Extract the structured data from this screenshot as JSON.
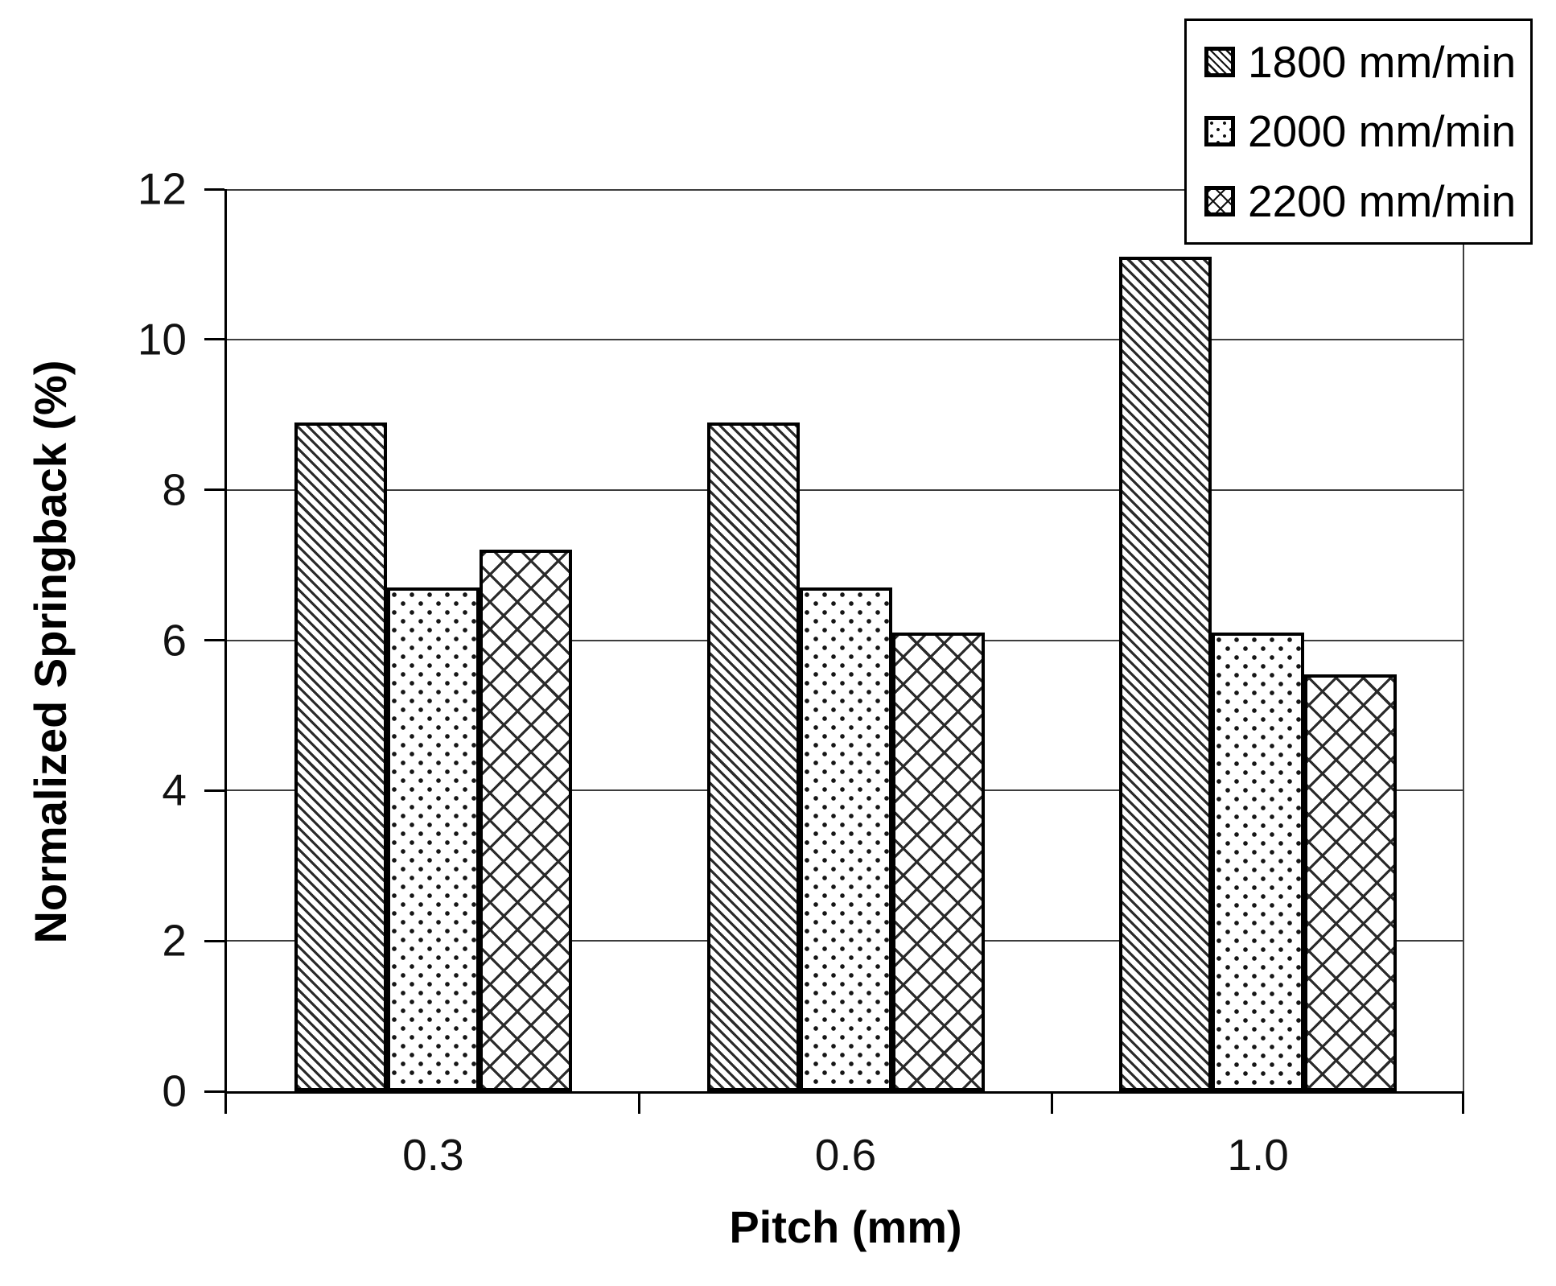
{
  "chart_data": {
    "type": "bar",
    "title": "",
    "xlabel": "Pitch (mm)",
    "ylabel": "Normalized Springback (%)",
    "categories": [
      "0.3",
      "0.6",
      "1.0"
    ],
    "series": [
      {
        "name": "1800 mm/min",
        "pattern": "diagonal",
        "values": [
          8.9,
          8.9,
          11.1
        ]
      },
      {
        "name": "2000 mm/min",
        "pattern": "dots",
        "values": [
          6.7,
          6.7,
          6.1
        ]
      },
      {
        "name": "2200 mm/min",
        "pattern": "crosshatch",
        "values": [
          7.2,
          6.1,
          5.55
        ]
      }
    ],
    "ylim": [
      0,
      12
    ],
    "ytick_step": 2,
    "yticks": [
      0,
      2,
      4,
      6,
      8,
      10,
      12
    ],
    "grid": "horizontal",
    "legend_position": "top-right",
    "colors": {
      "ink": "#000000",
      "grid": "#3d3d3d",
      "bar_fill": "#ffffff",
      "hatch": "#2a2a2a"
    }
  }
}
